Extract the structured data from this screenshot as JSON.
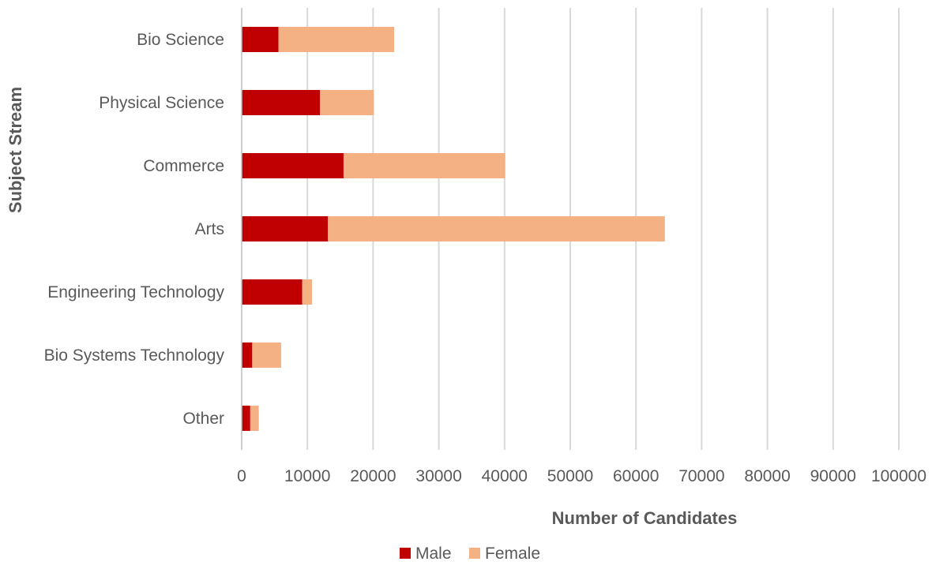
{
  "chart_data": {
    "type": "bar",
    "orientation": "horizontal",
    "stacked": true,
    "categories": [
      "Bio Science",
      "Physical Science",
      "Commerce",
      "Arts",
      "Engineering Technology",
      "Bio Systems Technology",
      "Other"
    ],
    "series": [
      {
        "name": "Male",
        "color": "#c00000",
        "values": [
          5600,
          11900,
          15500,
          13100,
          9200,
          1600,
          1300
        ]
      },
      {
        "name": "Female",
        "color": "#f4b183",
        "values": [
          17600,
          8200,
          24600,
          51300,
          1500,
          4400,
          1300
        ]
      }
    ],
    "xlabel": "Number of Candidates",
    "ylabel": "Subject Stream",
    "xlim": [
      0,
      100000
    ],
    "xticks": [
      0,
      10000,
      20000,
      30000,
      40000,
      50000,
      60000,
      70000,
      80000,
      90000,
      100000
    ],
    "grid": "vertical",
    "legend": "bottom"
  }
}
